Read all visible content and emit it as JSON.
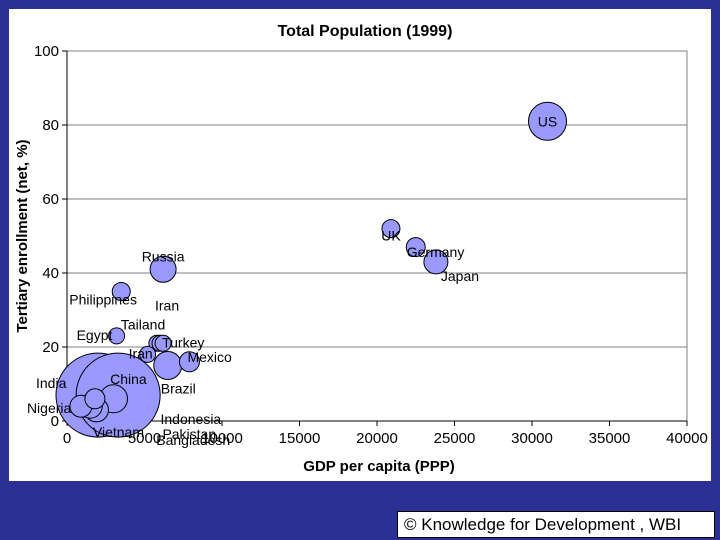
{
  "chart_data": {
    "type": "bubble",
    "title": "Total Population (1999)",
    "xlabel": "GDP per capita (PPP)",
    "ylabel": "Tertiary enrollment (net, %)",
    "xlim": [
      0,
      40000
    ],
    "ylim": [
      0,
      100
    ],
    "xticks": [
      0,
      5000,
      10000,
      15000,
      20000,
      25000,
      30000,
      35000,
      40000
    ],
    "yticks": [
      0,
      20,
      40,
      60,
      80,
      100
    ],
    "gridlines": "horizontal",
    "bubble_color": "#9999ff",
    "points": [
      {
        "label": "US",
        "x": 31000,
        "y": 81,
        "r": 19
      },
      {
        "label": "UK",
        "x": 20900,
        "y": 52,
        "r": 9
      },
      {
        "label": "Germany",
        "x": 22500,
        "y": 47,
        "r": 9.5
      },
      {
        "label": "Japan",
        "x": 23800,
        "y": 43,
        "r": 12
      },
      {
        "label": "Russia",
        "x": 6200,
        "y": 41,
        "r": 13
      },
      {
        "label": "Philippines",
        "x": 3500,
        "y": 35,
        "r": 9
      },
      {
        "label": "Egypt",
        "x": 3200,
        "y": 23,
        "r": 8
      },
      {
        "label": "Tailand",
        "x": 5800,
        "y": 21,
        "r": 8
      },
      {
        "label": "Iran",
        "x": 6000,
        "y": 21,
        "r": 8
      },
      {
        "label": "Turkey",
        "x": 6200,
        "y": 21,
        "r": 8
      },
      {
        "label": "Iran",
        "x": 5200,
        "y": 18,
        "r": 8
      },
      {
        "label": "Mexico",
        "x": 7900,
        "y": 16,
        "r": 10
      },
      {
        "label": "Brazil",
        "x": 6500,
        "y": 15,
        "r": 14
      },
      {
        "label": "India",
        "x": 2000,
        "y": 7,
        "r": 42
      },
      {
        "label": "China",
        "x": 3300,
        "y": 7,
        "r": 42
      },
      {
        "label": "Indonesia",
        "x": 3000,
        "y": 6,
        "r": 14
      },
      {
        "label": "Pakistan",
        "x": 1900,
        "y": 3,
        "r": 12
      },
      {
        "label": "Nigeria",
        "x": 900,
        "y": 4,
        "r": 11
      },
      {
        "label": "Bangladesh",
        "x": 1500,
        "y": 4,
        "r": 12
      },
      {
        "label": "Vietnam",
        "x": 1800,
        "y": 6,
        "r": 10
      }
    ]
  },
  "footer": {
    "text": "© Knowledge for Development , WBI"
  }
}
